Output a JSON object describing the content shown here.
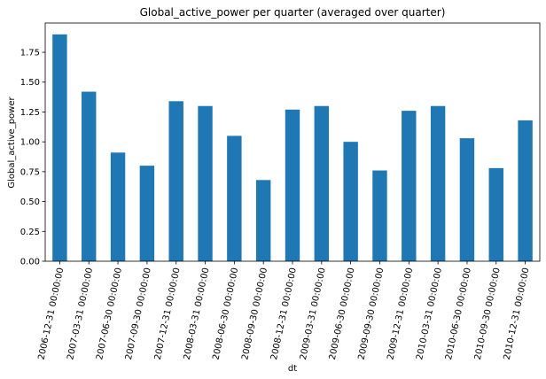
{
  "chart_data": {
    "type": "bar",
    "title": "Global_active_power per quarter (averaged over quarter)",
    "xlabel": "dt",
    "ylabel": "Global_active_power",
    "categories": [
      "2006-12-31 00:00:00",
      "2007-03-31 00:00:00",
      "2007-06-30 00:00:00",
      "2007-09-30 00:00:00",
      "2007-12-31 00:00:00",
      "2008-03-31 00:00:00",
      "2008-06-30 00:00:00",
      "2008-09-30 00:00:00",
      "2008-12-31 00:00:00",
      "2009-03-31 00:00:00",
      "2009-06-30 00:00:00",
      "2009-09-30 00:00:00",
      "2009-12-31 00:00:00",
      "2010-03-31 00:00:00",
      "2010-06-30 00:00:00",
      "2010-09-30 00:00:00",
      "2010-12-31 00:00:00"
    ],
    "values": [
      1.9,
      1.42,
      0.91,
      0.8,
      1.34,
      1.3,
      1.05,
      0.68,
      1.27,
      1.3,
      1.0,
      0.76,
      1.26,
      1.3,
      1.03,
      0.78,
      1.18
    ],
    "yticks": [
      "0.00",
      "0.25",
      "0.50",
      "0.75",
      "1.00",
      "1.25",
      "1.50",
      "1.75"
    ],
    "ylim": [
      0,
      1.995
    ],
    "grid": false,
    "bar_color": "#1f77b4"
  }
}
